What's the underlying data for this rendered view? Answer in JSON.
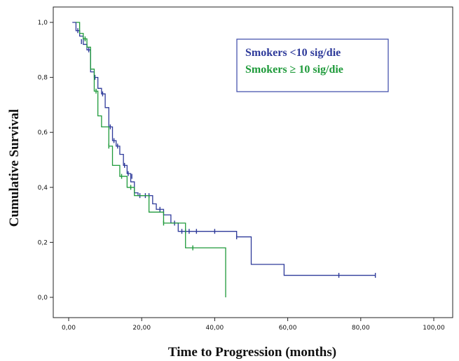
{
  "chart_data": {
    "type": "line",
    "subtype": "kaplan-meier step curve",
    "xlabel": "Time to Progression (months)",
    "ylabel": "Cumulative Survival",
    "xlim": [
      0,
      100
    ],
    "ylim": [
      0,
      1
    ],
    "x_ticks": [
      "0,00",
      "20,00",
      "40,00",
      "60,00",
      "80,00",
      "100,00"
    ],
    "x_tick_values": [
      0,
      20,
      40,
      60,
      80,
      100
    ],
    "y_ticks": [
      "0,0",
      "0,2",
      "0,4",
      "0,6",
      "0,8",
      "1,0"
    ],
    "y_tick_values": [
      0,
      0.2,
      0.4,
      0.6,
      0.8,
      1.0
    ],
    "grid": false,
    "legend_position": "top-right",
    "series": [
      {
        "name": "Smokers <10 sig/die",
        "color": "#2e3a9a",
        "steps": [
          [
            1,
            1.0
          ],
          [
            2,
            0.97
          ],
          [
            3,
            0.95
          ],
          [
            4,
            0.92
          ],
          [
            5,
            0.9
          ],
          [
            6,
            0.82
          ],
          [
            7,
            0.8
          ],
          [
            8,
            0.76
          ],
          [
            9,
            0.74
          ],
          [
            10,
            0.69
          ],
          [
            11,
            0.62
          ],
          [
            12,
            0.57
          ],
          [
            13,
            0.55
          ],
          [
            14,
            0.52
          ],
          [
            15,
            0.48
          ],
          [
            16,
            0.45
          ],
          [
            17,
            0.42
          ],
          [
            18,
            0.38
          ],
          [
            19,
            0.37
          ],
          [
            23,
            0.34
          ],
          [
            24,
            0.32
          ],
          [
            26,
            0.3
          ],
          [
            28,
            0.27
          ],
          [
            30,
            0.24
          ],
          [
            46,
            0.22
          ],
          [
            50,
            0.12
          ],
          [
            59,
            0.08
          ],
          [
            84,
            0.08
          ]
        ],
        "censored": [
          [
            2.5,
            0.97
          ],
          [
            3.5,
            0.93
          ],
          [
            5.5,
            0.9
          ],
          [
            7.2,
            0.8
          ],
          [
            9.3,
            0.74
          ],
          [
            11.4,
            0.62
          ],
          [
            12.4,
            0.57
          ],
          [
            13.4,
            0.55
          ],
          [
            15.3,
            0.48
          ],
          [
            16.3,
            0.45
          ],
          [
            17.3,
            0.44
          ],
          [
            19.5,
            0.37
          ],
          [
            21,
            0.37
          ],
          [
            22,
            0.37
          ],
          [
            25,
            0.32
          ],
          [
            29,
            0.27
          ],
          [
            31,
            0.24
          ],
          [
            32,
            0.24
          ],
          [
            33,
            0.24
          ],
          [
            35,
            0.24
          ],
          [
            40,
            0.24
          ],
          [
            46,
            0.22
          ],
          [
            74,
            0.08
          ],
          [
            84,
            0.08
          ]
        ]
      },
      {
        "name": "Smokers ≥ 10 sig/die",
        "color": "#1e9a3a",
        "steps": [
          [
            2,
            1.0
          ],
          [
            3,
            0.96
          ],
          [
            4,
            0.94
          ],
          [
            5,
            0.91
          ],
          [
            6,
            0.83
          ],
          [
            7,
            0.75
          ],
          [
            8,
            0.66
          ],
          [
            9,
            0.62
          ],
          [
            11,
            0.55
          ],
          [
            12,
            0.48
          ],
          [
            14,
            0.44
          ],
          [
            16,
            0.4
          ],
          [
            18,
            0.37
          ],
          [
            22,
            0.31
          ],
          [
            26,
            0.27
          ],
          [
            32,
            0.18
          ],
          [
            43,
            0.0
          ]
        ],
        "censored": [
          [
            4.5,
            0.94
          ],
          [
            7.5,
            0.75
          ],
          [
            11,
            0.55
          ],
          [
            14.5,
            0.44
          ],
          [
            17,
            0.4
          ],
          [
            26,
            0.27
          ],
          [
            34,
            0.18
          ]
        ]
      }
    ]
  }
}
